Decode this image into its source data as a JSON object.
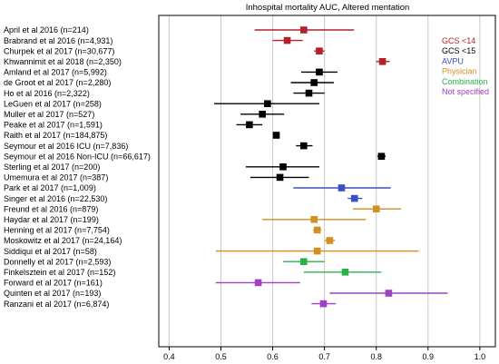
{
  "chart_data": {
    "type": "forest",
    "title": "Inhospital mortality AUC, Altered mentation",
    "xlim": [
      0.38,
      1.03
    ],
    "xticks": [
      "0.4",
      "0.5",
      "0.6",
      "0.7",
      "0.8",
      "0.9",
      "1.0"
    ],
    "grid": true,
    "legend_placement": "right",
    "legend": [
      {
        "name": "GCS <14",
        "color": "#b0232a"
      },
      {
        "name": "GCS <15",
        "color": "#000000"
      },
      {
        "name": "AVPU",
        "color": "#3b4fc2"
      },
      {
        "name": "Physician",
        "color": "#d38f1f"
      },
      {
        "name": "Combination",
        "color": "#2ab24a"
      },
      {
        "name": "Not specified",
        "color": "#a23fc2"
      }
    ],
    "studies": [
      {
        "label": "April et al 2016 (n=214)",
        "group": "GCS <14",
        "est": 0.66,
        "lo": 0.565,
        "hi": 0.757
      },
      {
        "label": "Brabrand et al 2016 (n=4,931)",
        "group": "GCS <14",
        "est": 0.628,
        "lo": 0.6,
        "hi": 0.658
      },
      {
        "label": "Churpek et al 2017 (n=30,677)",
        "group": "GCS <14",
        "est": 0.69,
        "lo": 0.68,
        "hi": 0.7
      },
      {
        "label": "Khwannimit et al 2018 (n=2,350)",
        "group": "GCS <14",
        "est": 0.812,
        "lo": 0.8,
        "hi": 0.826
      },
      {
        "label": "Amland et al 2017 (n=5,992)",
        "group": "GCS <15",
        "est": 0.69,
        "lo": 0.655,
        "hi": 0.725
      },
      {
        "label": "de Groot et al 2017 (n=2,280)",
        "group": "GCS <15",
        "est": 0.68,
        "lo": 0.635,
        "hi": 0.718
      },
      {
        "label": "Ho et al 2016 (n=2,322)",
        "group": "GCS <15",
        "est": 0.67,
        "lo": 0.64,
        "hi": 0.7
      },
      {
        "label": "LeGuen et al 2017 (n=258)",
        "group": "GCS <15",
        "est": 0.59,
        "lo": 0.487,
        "hi": 0.69
      },
      {
        "label": "Muller et al 2017 (n=527)",
        "group": "GCS <15",
        "est": 0.58,
        "lo": 0.538,
        "hi": 0.622
      },
      {
        "label": "Peake et al 2017 (n=1,591)",
        "group": "GCS <15",
        "est": 0.555,
        "lo": 0.53,
        "hi": 0.58
      },
      {
        "label": "Raith et al 2017 (n=184,875)",
        "group": "GCS <15",
        "est": 0.607,
        "lo": 0.603,
        "hi": 0.611
      },
      {
        "label": "Seymour et al 2016 ICU (n=7,836)",
        "group": "GCS <15",
        "est": 0.66,
        "lo": 0.645,
        "hi": 0.677
      },
      {
        "label": "Seymour et al 2016 Non-ICU (n=66,617)",
        "group": "GCS <15",
        "est": 0.81,
        "lo": 0.802,
        "hi": 0.818
      },
      {
        "label": "Sterling et al 2017 (n=200)",
        "group": "GCS <15",
        "est": 0.62,
        "lo": 0.548,
        "hi": 0.69
      },
      {
        "label": "Umemura et al 2017 (n=387)",
        "group": "GCS <15",
        "est": 0.614,
        "lo": 0.557,
        "hi": 0.67
      },
      {
        "label": "Park et al 2017 (n=1,009)",
        "group": "AVPU",
        "est": 0.733,
        "lo": 0.64,
        "hi": 0.828
      },
      {
        "label": "Singer et al 2016 (n=22,530)",
        "group": "AVPU",
        "est": 0.758,
        "lo": 0.745,
        "hi": 0.773
      },
      {
        "label": "Freund et al 2016 (n=879)",
        "group": "Physician",
        "est": 0.8,
        "lo": 0.755,
        "hi": 0.848
      },
      {
        "label": "Haydar et al 2017 (n=199)",
        "group": "Physician",
        "est": 0.68,
        "lo": 0.58,
        "hi": 0.78
      },
      {
        "label": "Henning et al 2017 (n=7,754)",
        "group": "Physician",
        "est": 0.686,
        "lo": 0.678,
        "hi": 0.694
      },
      {
        "label": "Moskowitz et al 2017 (n=24,164)",
        "group": "Physician",
        "est": 0.71,
        "lo": 0.7,
        "hi": 0.72
      },
      {
        "label": "Siddiqui et al 2017 (n=58)",
        "group": "Physician",
        "est": 0.686,
        "lo": 0.49,
        "hi": 0.882
      },
      {
        "label": "Donnelly et al 2017 (n=2,593)",
        "group": "Combination",
        "est": 0.66,
        "lo": 0.62,
        "hi": 0.7
      },
      {
        "label": "Finkelsztein et al 2017 (n=152)",
        "group": "Combination",
        "est": 0.74,
        "lo": 0.66,
        "hi": 0.81
      },
      {
        "label": "Forward et al 2017 (n=161)",
        "group": "Not specified",
        "est": 0.572,
        "lo": 0.49,
        "hi": 0.653
      },
      {
        "label": "Quinten et al 2017 (n=193)",
        "group": "Not specified",
        "est": 0.824,
        "lo": 0.71,
        "hi": 0.938
      },
      {
        "label": "Ranzani et al 2017 (n=6,874)",
        "group": "Not specified",
        "est": 0.698,
        "lo": 0.675,
        "hi": 0.722
      }
    ]
  }
}
